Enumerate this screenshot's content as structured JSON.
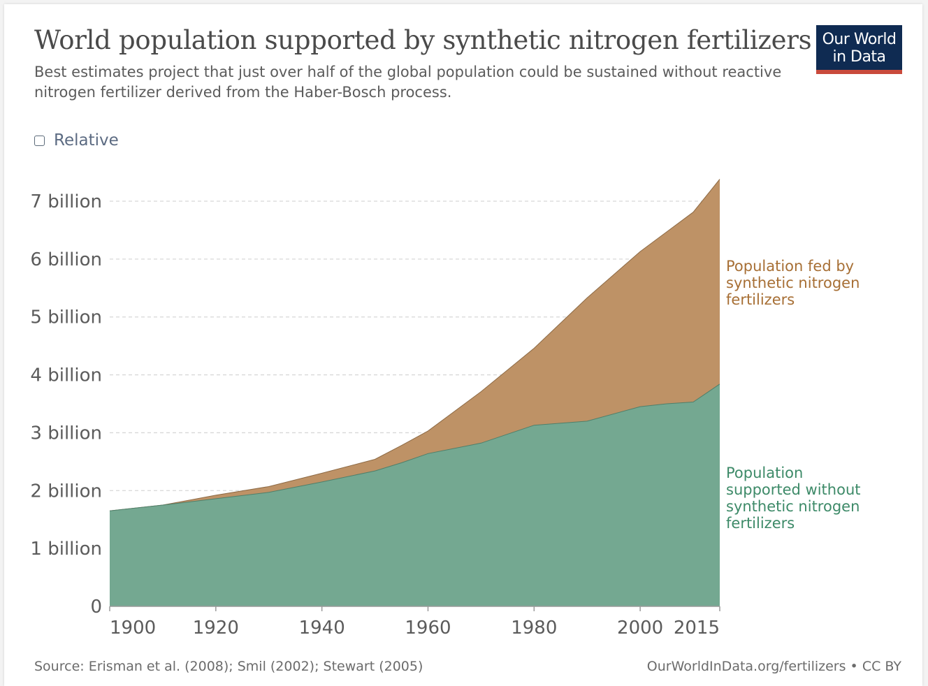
{
  "header": {
    "title": "World population supported by synthetic nitrogen fertilizers",
    "subtitle": "Best estimates project that just over half of the global population could be sustained without reactive nitrogen fertilizer derived from the Haber-Bosch process."
  },
  "logo": {
    "line1": "Our World",
    "line2": "in Data"
  },
  "controls": {
    "relative_label": "Relative",
    "relative_checked": false
  },
  "footer": {
    "source": "Source: Erisman et al. (2008); Smil (2002); Stewart (2005)",
    "link": "OurWorldInData.org/fertilizers",
    "separator": " • ",
    "license": "CC BY"
  },
  "colors": {
    "with_fertilizer": "#be9266",
    "with_fertilizer_text": "#a76f35",
    "without_fertilizer": "#74a891",
    "without_fertilizer_text": "#3d8a68",
    "gridline": "#d8d8d8",
    "axis_text": "#5b5b5b"
  },
  "chart_data": {
    "type": "area",
    "stacked": true,
    "x": [
      1900,
      1910,
      1920,
      1930,
      1940,
      1950,
      1955,
      1960,
      1970,
      1980,
      1990,
      2000,
      2005,
      2010,
      2015
    ],
    "series": [
      {
        "name": "Population supported without synthetic nitrogen fertilizers",
        "label_lines": [
          "Population",
          "supported without",
          "synthetic nitrogen",
          "fertilizers"
        ],
        "values": [
          1.65,
          1.75,
          1.86,
          1.97,
          2.15,
          2.34,
          2.48,
          2.64,
          2.82,
          3.13,
          3.2,
          3.45,
          3.5,
          3.53,
          3.84
        ]
      },
      {
        "name": "Population fed by synthetic nitrogen fertilizers",
        "label_lines": [
          "Population fed by",
          "synthetic nitrogen",
          "fertilizers"
        ],
        "values": [
          0,
          0,
          0.06,
          0.1,
          0.15,
          0.2,
          0.3,
          0.39,
          0.89,
          1.33,
          2.13,
          2.68,
          2.97,
          3.28,
          3.54
        ]
      }
    ],
    "xlim": [
      1900,
      2015
    ],
    "ylim": [
      0,
      7.4
    ],
    "yticks": [
      0,
      1,
      2,
      3,
      4,
      5,
      6,
      7
    ],
    "ytick_labels": [
      "0",
      "1 billion",
      "2 billion",
      "3 billion",
      "4 billion",
      "5 billion",
      "6 billion",
      "7 billion"
    ],
    "xticks": [
      1900,
      1920,
      1940,
      1960,
      1980,
      2000,
      2015
    ],
    "xtick_labels": [
      "1900",
      "1920",
      "1940",
      "1960",
      "1980",
      "2000",
      "2015"
    ],
    "grid": "horizontal dashed",
    "legend": "inline-right"
  }
}
